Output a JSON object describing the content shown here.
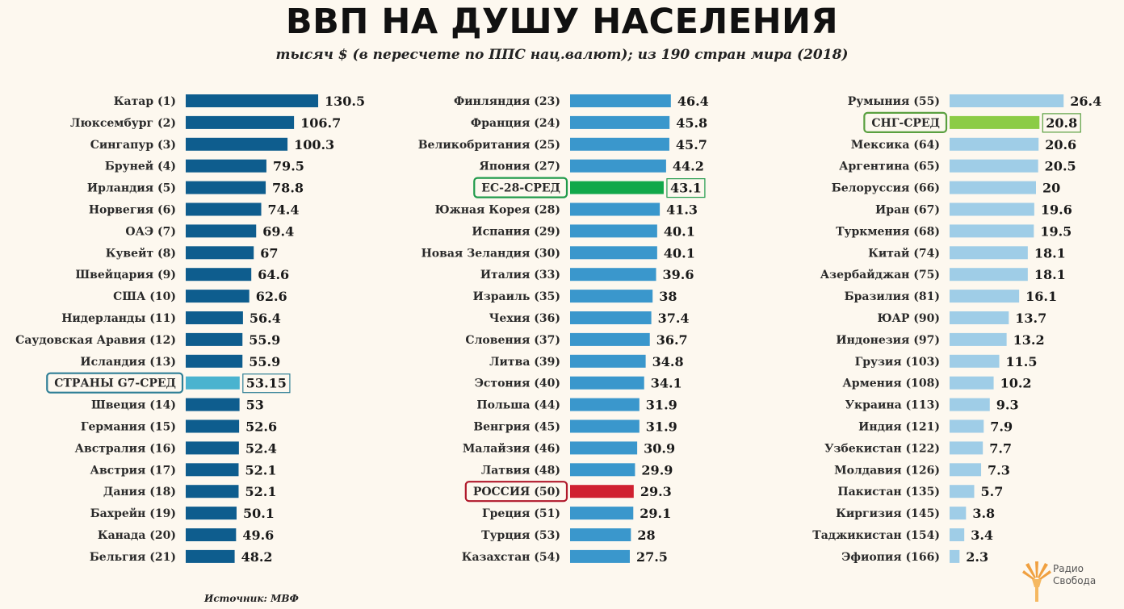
{
  "title": "ВВП НА ДУШУ НАСЕЛЕНИЯ",
  "subtitle": "тысяч $ (в пересчете по ППС нац.валют); из 190 стран мира (2018)",
  "source": "Источник: МВФ",
  "logo": {
    "line1": "Радио",
    "line2": "Свобода",
    "icon": "torch-icon"
  },
  "colors": {
    "col1": "#0e5d8e",
    "col2": "#3a97cc",
    "col3": "#9fcde7",
    "g7": "#4ab3cf",
    "eu": "#11a84a",
    "russia": "#d02030",
    "cis": "#8ccc46",
    "g7_frame": "#2f7f96",
    "eu_frame": "#1f9a4a",
    "russia_frame": "#b0192b",
    "cis_frame": "#5aa040"
  },
  "chart_data": {
    "type": "bar",
    "orientation": "horizontal",
    "columns": [
      {
        "color": "#0e5d8e",
        "items": [
          {
            "label": "Катар (1)",
            "value": 130.5,
            "display": "130.5"
          },
          {
            "label": "Люксембург (2)",
            "value": 106.7,
            "display": "106.7"
          },
          {
            "label": "Сингапур (3)",
            "value": 100.3,
            "display": "100.3"
          },
          {
            "label": "Бруней (4)",
            "value": 79.5,
            "display": "79.5"
          },
          {
            "label": "Ирландия (5)",
            "value": 78.8,
            "display": "78.8"
          },
          {
            "label": "Норвегия (6)",
            "value": 74.4,
            "display": "74.4"
          },
          {
            "label": "ОАЭ (7)",
            "value": 69.4,
            "display": "69.4"
          },
          {
            "label": "Кувейт (8)",
            "value": 67,
            "display": "67"
          },
          {
            "label": "Швейцария (9)",
            "value": 64.6,
            "display": "64.6"
          },
          {
            "label": "США (10)",
            "value": 62.6,
            "display": "62.6"
          },
          {
            "label": "Нидерланды (11)",
            "value": 56.4,
            "display": "56.4"
          },
          {
            "label": "Саудовская Аравия (12)",
            "value": 55.9,
            "display": "55.9"
          },
          {
            "label": "Исландия (13)",
            "value": 55.9,
            "display": "55.9"
          },
          {
            "label": "СТРАНЫ G7-СРЕД",
            "value": 53.15,
            "display": "53.15",
            "highlight": "g7"
          },
          {
            "label": "Швеция (14)",
            "value": 53,
            "display": "53"
          },
          {
            "label": "Германия (15)",
            "value": 52.6,
            "display": "52.6"
          },
          {
            "label": "Австралия (16)",
            "value": 52.4,
            "display": "52.4"
          },
          {
            "label": "Австрия (17)",
            "value": 52.1,
            "display": "52.1"
          },
          {
            "label": "Дания (18)",
            "value": 52.1,
            "display": "52.1"
          },
          {
            "label": "Бахрейн (19)",
            "value": 50.1,
            "display": "50.1"
          },
          {
            "label": "Канада (20)",
            "value": 49.6,
            "display": "49.6"
          },
          {
            "label": "Бельгия (21)",
            "value": 48.2,
            "display": "48.2"
          }
        ]
      },
      {
        "color": "#3a97cc",
        "items": [
          {
            "label": "Финляндия (23)",
            "value": 46.4,
            "display": "46.4"
          },
          {
            "label": "Франция (24)",
            "value": 45.8,
            "display": "45.8"
          },
          {
            "label": "Великобритания (25)",
            "value": 45.7,
            "display": "45.7"
          },
          {
            "label": "Япония (27)",
            "value": 44.2,
            "display": "44.2"
          },
          {
            "label": "ЕС-28-СРЕД",
            "value": 43.1,
            "display": "43.1",
            "highlight": "eu"
          },
          {
            "label": "Южная Корея (28)",
            "value": 41.3,
            "display": "41.3"
          },
          {
            "label": "Испания (29)",
            "value": 40.1,
            "display": "40.1"
          },
          {
            "label": "Новая Зеландия (30)",
            "value": 40.1,
            "display": "40.1"
          },
          {
            "label": "Италия (33)",
            "value": 39.6,
            "display": "39.6"
          },
          {
            "label": "Израиль (35)",
            "value": 38,
            "display": "38"
          },
          {
            "label": "Чехия (36)",
            "value": 37.4,
            "display": "37.4"
          },
          {
            "label": "Словения (37)",
            "value": 36.7,
            "display": "36.7"
          },
          {
            "label": "Литва (39)",
            "value": 34.8,
            "display": "34.8"
          },
          {
            "label": "Эстония (40)",
            "value": 34.1,
            "display": "34.1"
          },
          {
            "label": "Польша (44)",
            "value": 31.9,
            "display": "31.9"
          },
          {
            "label": "Венгрия (45)",
            "value": 31.9,
            "display": "31.9"
          },
          {
            "label": "Малайзия (46)",
            "value": 30.9,
            "display": "30.9"
          },
          {
            "label": "Латвия (48)",
            "value": 29.9,
            "display": "29.9"
          },
          {
            "label": "РОССИЯ (50)",
            "value": 29.3,
            "display": "29.3",
            "highlight": "russia"
          },
          {
            "label": "Греция (51)",
            "value": 29.1,
            "display": "29.1"
          },
          {
            "label": "Турция (53)",
            "value": 28,
            "display": "28"
          },
          {
            "label": "Казахстан (54)",
            "value": 27.5,
            "display": "27.5"
          }
        ]
      },
      {
        "color": "#9fcde7",
        "items": [
          {
            "label": "Румыния (55)",
            "value": 26.4,
            "display": "26.4"
          },
          {
            "label": "СНГ-СРЕД",
            "value": 20.8,
            "display": "20.8",
            "highlight": "cis"
          },
          {
            "label": "Мексика (64)",
            "value": 20.6,
            "display": "20.6"
          },
          {
            "label": "Аргентина (65)",
            "value": 20.5,
            "display": "20.5"
          },
          {
            "label": "Белоруссия (66)",
            "value": 20,
            "display": "20"
          },
          {
            "label": "Иран (67)",
            "value": 19.6,
            "display": "19.6"
          },
          {
            "label": "Туркмения (68)",
            "value": 19.5,
            "display": "19.5"
          },
          {
            "label": "Китай (74)",
            "value": 18.1,
            "display": "18.1"
          },
          {
            "label": "Азербайджан (75)",
            "value": 18.1,
            "display": "18.1"
          },
          {
            "label": "Бразилия (81)",
            "value": 16.1,
            "display": "16.1"
          },
          {
            "label": "ЮАР (90)",
            "value": 13.7,
            "display": "13.7"
          },
          {
            "label": "Индонезия (97)",
            "value": 13.2,
            "display": "13.2"
          },
          {
            "label": "Грузия (103)",
            "value": 11.5,
            "display": "11.5"
          },
          {
            "label": "Армения (108)",
            "value": 10.2,
            "display": "10.2"
          },
          {
            "label": "Украина (113)",
            "value": 9.3,
            "display": "9.3"
          },
          {
            "label": "Индия (121)",
            "value": 7.9,
            "display": "7.9"
          },
          {
            "label": "Узбекистан (122)",
            "value": 7.7,
            "display": "7.7"
          },
          {
            "label": "Молдавия (126)",
            "value": 7.3,
            "display": "7.3"
          },
          {
            "label": "Пакистан (135)",
            "value": 5.7,
            "display": "5.7"
          },
          {
            "label": "Киргизия (145)",
            "value": 3.8,
            "display": "3.8"
          },
          {
            "label": "Таджикистан (154)",
            "value": 3.4,
            "display": "3.4"
          },
          {
            "label": "Эфиопия (166)",
            "value": 2.3,
            "display": "2.3"
          }
        ]
      }
    ]
  }
}
